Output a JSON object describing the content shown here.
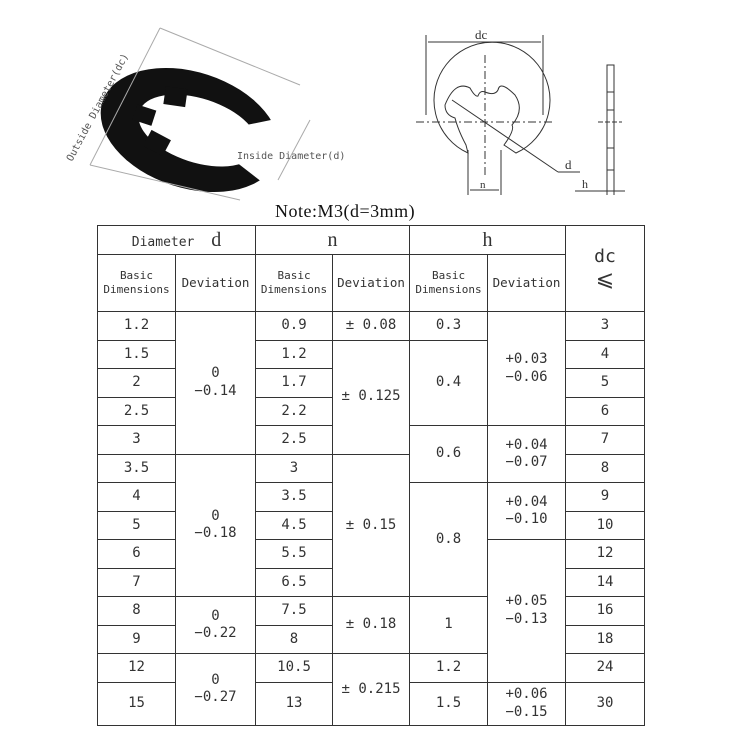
{
  "photo": {
    "outside_label": "Outside Diameter(dc)",
    "inside_label": "Inside Diameter(d)"
  },
  "drawing": {
    "dc_label": "dc",
    "d_label": "d",
    "n_label": "n",
    "h_label": "h"
  },
  "note": "Note:M3(d=3mm)",
  "table": {
    "header": {
      "diameter_word": "Diameter",
      "d": "d",
      "n": "n",
      "h": "h",
      "dc": "dc",
      "dc_symbol": "⩽",
      "basic": "Basic Dimensions",
      "deviation": "Deviation"
    },
    "rows": [
      {
        "d": "1.2",
        "n": "0.9",
        "dc": "3"
      },
      {
        "d": "1.5",
        "n": "1.2",
        "dc": "4"
      },
      {
        "d": "2",
        "n": "1.7",
        "dc": "5"
      },
      {
        "d": "2.5",
        "n": "2.2",
        "dc": "6"
      },
      {
        "d": "3",
        "n": "2.5",
        "dc": "7"
      },
      {
        "d": "3.5",
        "n": "3",
        "dc": "8"
      },
      {
        "d": "4",
        "n": "3.5",
        "dc": "9"
      },
      {
        "d": "5",
        "n": "4.5",
        "dc": "10"
      },
      {
        "d": "6",
        "n": "5.5",
        "dc": "12"
      },
      {
        "d": "7",
        "n": "6.5",
        "dc": "14"
      },
      {
        "d": "8",
        "n": "7.5",
        "dc": "16"
      },
      {
        "d": "9",
        "n": "8",
        "dc": "18"
      },
      {
        "d": "12",
        "n": "10.5",
        "dc": "24"
      },
      {
        "d": "15",
        "n": "13",
        "dc": "30"
      }
    ],
    "d_deviation": [
      {
        "upper": "0",
        "lower": "−0.14",
        "rows": 5
      },
      {
        "upper": "0",
        "lower": "−0.18",
        "rows": 5
      },
      {
        "upper": "0",
        "lower": "−0.22",
        "rows": 2
      },
      {
        "upper": "0",
        "lower": "−0.27",
        "rows": 2
      }
    ],
    "n_deviation": [
      {
        "value": "± 0.08",
        "rows": 1
      },
      {
        "value": "± 0.125",
        "rows": 4
      },
      {
        "value": "± 0.15",
        "rows": 5
      },
      {
        "value": "± 0.18",
        "rows": 2
      },
      {
        "value": "± 0.215",
        "rows": 2
      }
    ],
    "h_basic": [
      {
        "value": "0.3",
        "rows": 1
      },
      {
        "value": "0.4",
        "rows": 3
      },
      {
        "value": "0.6",
        "rows": 2
      },
      {
        "value": "0.8",
        "rows": 4
      },
      {
        "value": "1",
        "rows": 2
      },
      {
        "value": "1.2",
        "rows": 1
      },
      {
        "value": "1.5",
        "rows": 1
      }
    ],
    "h_deviation": [
      {
        "upper": "+0.03",
        "lower": "−0.06",
        "rows": 4
      },
      {
        "upper": "+0.04",
        "lower": "−0.07",
        "rows": 2
      },
      {
        "upper": "+0.04",
        "lower": "−0.10",
        "rows": 2
      },
      {
        "upper": "+0.05",
        "lower": "−0.13",
        "rows": 5
      },
      {
        "upper": "+0.06",
        "lower": "−0.15",
        "rows": 1
      }
    ]
  }
}
